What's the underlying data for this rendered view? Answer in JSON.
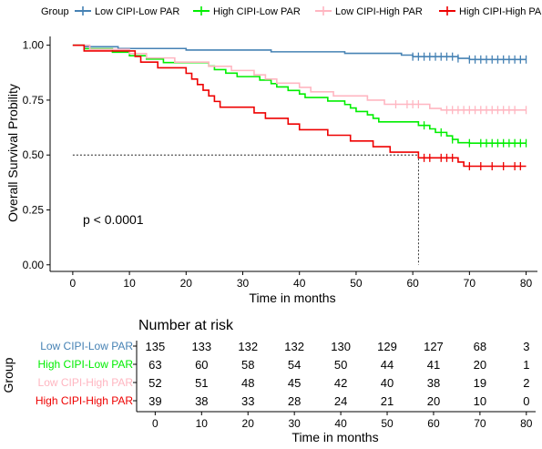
{
  "legend": {
    "title": "Group",
    "items": [
      {
        "label": "Low CIPI-Low PAR",
        "color": "#4682b4"
      },
      {
        "label": "High CIPI-Low PAR",
        "color": "#00ee00"
      },
      {
        "label": "Low CIPI-High PAR",
        "color": "#ffb6c1"
      },
      {
        "label": "High CIPI-High PAR",
        "color": "#ee0000"
      }
    ]
  },
  "chart_data": {
    "type": "line",
    "subtype": "kaplan-meier",
    "xlabel": "Time in months",
    "ylabel": "Overall Survival Probility",
    "xlim": [
      -4,
      82
    ],
    "ylim": [
      -0.03,
      1.04
    ],
    "x_ticks": [
      0,
      10,
      20,
      30,
      40,
      50,
      60,
      70,
      80
    ],
    "y_ticks": [
      0.0,
      0.25,
      0.5,
      0.75,
      1.0
    ],
    "y_tick_labels": [
      "0.00",
      "0.25",
      "0.50",
      "0.75",
      "1.00"
    ],
    "annotation": "p < 0.0001",
    "median_line": {
      "y": 0.5,
      "x": 61
    },
    "series": [
      {
        "name": "Low CIPI-Low PAR",
        "color": "#4682b4",
        "steps": [
          [
            0,
            1.0
          ],
          [
            2,
            0.993
          ],
          [
            8,
            0.985
          ],
          [
            20,
            0.978
          ],
          [
            35,
            0.97
          ],
          [
            48,
            0.963
          ],
          [
            58,
            0.955
          ],
          [
            60,
            0.948
          ],
          [
            68,
            0.94
          ],
          [
            70,
            0.935
          ]
        ],
        "end": 80,
        "censor_x": [
          60,
          61,
          62,
          63,
          64,
          65,
          66,
          67,
          68,
          70,
          71,
          72,
          73,
          74,
          75,
          76,
          77,
          78,
          79,
          80
        ],
        "censor_y": [
          0.948,
          0.948,
          0.948,
          0.948,
          0.948,
          0.948,
          0.948,
          0.948,
          0.94,
          0.935,
          0.935,
          0.935,
          0.935,
          0.935,
          0.935,
          0.935,
          0.935,
          0.935,
          0.935,
          0.935
        ]
      },
      {
        "name": "High CIPI-Low PAR",
        "color": "#00ee00",
        "steps": [
          [
            0,
            1.0
          ],
          [
            2,
            0.984
          ],
          [
            7,
            0.968
          ],
          [
            10,
            0.952
          ],
          [
            13,
            0.937
          ],
          [
            16,
            0.921
          ],
          [
            24,
            0.905
          ],
          [
            25,
            0.889
          ],
          [
            27,
            0.873
          ],
          [
            29,
            0.857
          ],
          [
            33,
            0.841
          ],
          [
            35,
            0.825
          ],
          [
            36,
            0.81
          ],
          [
            38,
            0.794
          ],
          [
            40,
            0.778
          ],
          [
            41,
            0.762
          ],
          [
            45,
            0.746
          ],
          [
            48,
            0.73
          ],
          [
            49,
            0.714
          ],
          [
            50,
            0.698
          ],
          [
            52,
            0.683
          ],
          [
            53,
            0.667
          ],
          [
            54,
            0.651
          ],
          [
            61,
            0.635
          ],
          [
            63,
            0.619
          ],
          [
            64,
            0.603
          ],
          [
            66,
            0.587
          ],
          [
            67,
            0.571
          ],
          [
            68,
            0.556
          ],
          [
            70,
            0.554
          ]
        ],
        "end": 80,
        "censor_x": [
          62,
          65,
          67,
          70,
          72,
          73,
          74,
          75,
          76,
          77,
          78,
          79,
          80
        ],
        "censor_y": [
          0.635,
          0.603,
          0.571,
          0.554,
          0.554,
          0.554,
          0.554,
          0.554,
          0.554,
          0.554,
          0.554,
          0.554,
          0.554
        ]
      },
      {
        "name": "Low CIPI-High PAR",
        "color": "#ffb6c1",
        "steps": [
          [
            0,
            1.0
          ],
          [
            3,
            0.981
          ],
          [
            10,
            0.962
          ],
          [
            13,
            0.942
          ],
          [
            18,
            0.923
          ],
          [
            24,
            0.904
          ],
          [
            28,
            0.885
          ],
          [
            32,
            0.865
          ],
          [
            34,
            0.846
          ],
          [
            36,
            0.827
          ],
          [
            40,
            0.808
          ],
          [
            42,
            0.788
          ],
          [
            46,
            0.769
          ],
          [
            52,
            0.75
          ],
          [
            55,
            0.731
          ],
          [
            63,
            0.712
          ],
          [
            65,
            0.705
          ]
        ],
        "end": 80,
        "censor_x": [
          57,
          59,
          60,
          61,
          66,
          67,
          68,
          69,
          70,
          71,
          72,
          73,
          74,
          75,
          76,
          77,
          78,
          80
        ],
        "censor_y": [
          0.731,
          0.731,
          0.731,
          0.731,
          0.705,
          0.705,
          0.705,
          0.705,
          0.705,
          0.705,
          0.705,
          0.705,
          0.705,
          0.705,
          0.705,
          0.705,
          0.705,
          0.705
        ]
      },
      {
        "name": "High CIPI-High PAR",
        "color": "#ee0000",
        "steps": [
          [
            0,
            1.0
          ],
          [
            2,
            0.974
          ],
          [
            11,
            0.949
          ],
          [
            12,
            0.923
          ],
          [
            15,
            0.897
          ],
          [
            20,
            0.872
          ],
          [
            21,
            0.846
          ],
          [
            22,
            0.821
          ],
          [
            23,
            0.795
          ],
          [
            24,
            0.769
          ],
          [
            25,
            0.744
          ],
          [
            26,
            0.718
          ],
          [
            32,
            0.692
          ],
          [
            34,
            0.667
          ],
          [
            38,
            0.641
          ],
          [
            40,
            0.615
          ],
          [
            45,
            0.59
          ],
          [
            49,
            0.564
          ],
          [
            53,
            0.538
          ],
          [
            56,
            0.513
          ],
          [
            61,
            0.487
          ],
          [
            68,
            0.468
          ],
          [
            69,
            0.449
          ]
        ],
        "end": 80,
        "censor_x": [
          62,
          63,
          65,
          66,
          67,
          70,
          72,
          74,
          76,
          78,
          79
        ],
        "censor_y": [
          0.487,
          0.487,
          0.487,
          0.487,
          0.487,
          0.449,
          0.449,
          0.449,
          0.449,
          0.449,
          0.449
        ]
      }
    ]
  },
  "risk_table": {
    "title": "Number at risk",
    "ylabel": "Group",
    "xlabel": "Time in months",
    "x_ticks": [
      0,
      10,
      20,
      30,
      40,
      50,
      60,
      70,
      80
    ],
    "rows": [
      {
        "label": "Low CIPI-Low PAR",
        "color": "#4682b4",
        "values": [
          "135",
          "133",
          "132",
          "132",
          "130",
          "129",
          "127",
          "68",
          "3"
        ]
      },
      {
        "label": "High CIPI-Low PAR",
        "color": "#00ee00",
        "values": [
          "63",
          "60",
          "58",
          "54",
          "50",
          "44",
          "41",
          "20",
          "1"
        ]
      },
      {
        "label": "Low CIPI-High PAR",
        "color": "#ffb6c1",
        "values": [
          "52",
          "51",
          "48",
          "45",
          "42",
          "40",
          "38",
          "19",
          "2"
        ]
      },
      {
        "label": "High CIPI-High PAR",
        "color": "#ee0000",
        "values": [
          "39",
          "38",
          "33",
          "28",
          "24",
          "21",
          "20",
          "10",
          "0"
        ]
      }
    ]
  }
}
